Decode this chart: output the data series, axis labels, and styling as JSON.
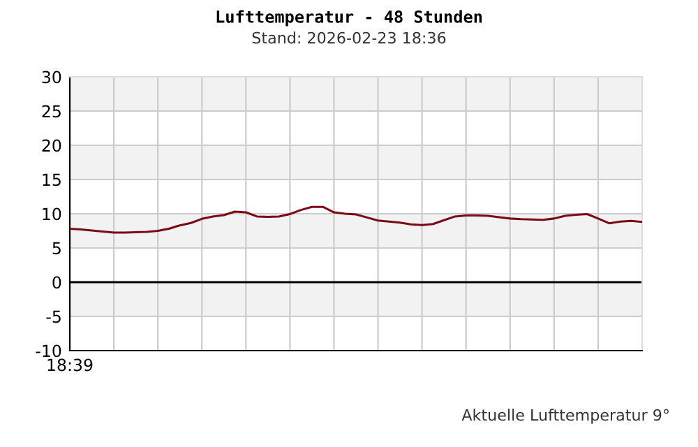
{
  "chart_data": {
    "type": "line",
    "title": "Lufttemperatur - 48 Stunden",
    "subtitle": "Stand: 2026-02-23 18:36",
    "annotations": [
      "Aktuelle Lufttemperatur 9°"
    ],
    "categories": [
      "18:39",
      null,
      null,
      null,
      null,
      null,
      null,
      null,
      null,
      null,
      null,
      null,
      null,
      null,
      null,
      null,
      null,
      null,
      null,
      null,
      null,
      null,
      null,
      null,
      null,
      null,
      null,
      null,
      null,
      null,
      null,
      null,
      null,
      null,
      null,
      null,
      null,
      null,
      null,
      null,
      null,
      null,
      null,
      null,
      null,
      null,
      null,
      null,
      null,
      null,
      null,
      null,
      null
    ],
    "series": [
      {
        "color": "#7b0a14",
        "values": [
          7.8,
          7.7,
          7.55,
          7.4,
          7.25,
          7.25,
          7.3,
          7.35,
          7.5,
          7.8,
          8.3,
          8.65,
          9.25,
          9.6,
          9.8,
          10.3,
          10.2,
          9.6,
          9.55,
          9.6,
          9.95,
          10.55,
          11.0,
          11.0,
          10.2,
          10.0,
          9.9,
          9.45,
          9.0,
          8.85,
          8.7,
          8.45,
          8.35,
          8.5,
          9.05,
          9.6,
          9.75,
          9.75,
          9.7,
          9.5,
          9.3,
          9.2,
          9.15,
          9.1,
          9.3,
          9.7,
          9.85,
          9.95,
          9.3,
          8.6,
          8.85,
          8.95,
          8.8
        ]
      }
    ],
    "ylim": [
      -10,
      30
    ],
    "yticks": [
      -10,
      -5,
      0,
      5,
      10,
      15,
      20,
      25,
      30
    ],
    "grid": true,
    "marker": "none",
    "line_style": "solid",
    "ref_lines": [
      {
        "axis": "y",
        "value": 0,
        "color": "#000000"
      }
    ],
    "bands": [
      {
        "axis": "y",
        "from": 25,
        "to": 30,
        "color": "#f2f2f2"
      },
      {
        "axis": "y",
        "from": 15,
        "to": 20,
        "color": "#f2f2f2"
      },
      {
        "axis": "y",
        "from": 5,
        "to": 10,
        "color": "#f2f2f2"
      },
      {
        "axis": "y",
        "from": -5,
        "to": 0,
        "color": "#f2f2f2"
      }
    ]
  }
}
